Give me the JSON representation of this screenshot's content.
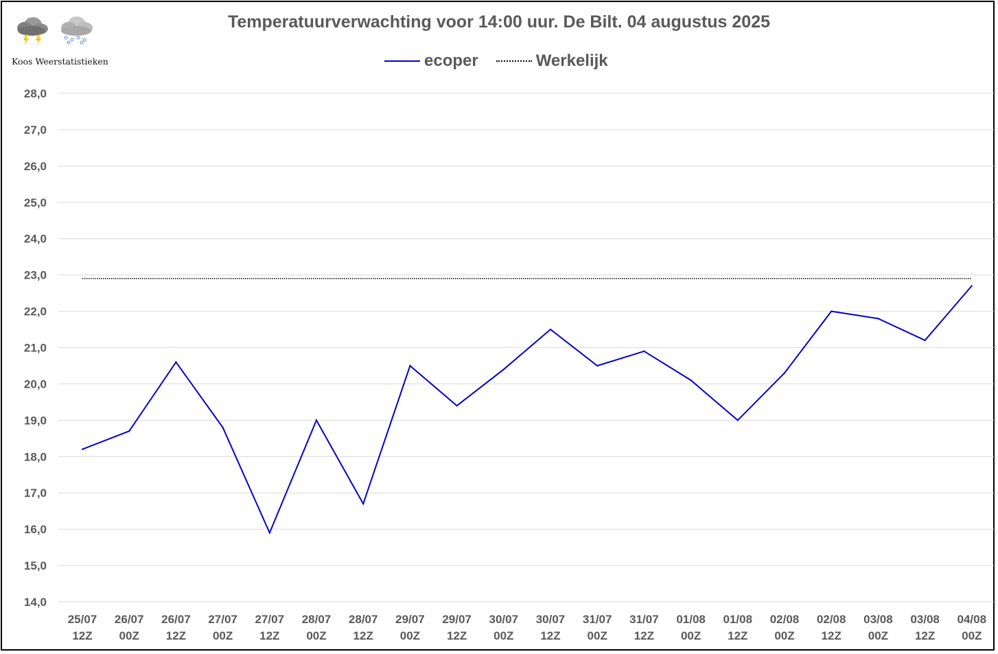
{
  "header": {
    "title": "Temperatuurverwachting voor 14:00 uur. De Bilt. 04 augustus 2025",
    "logo_text": "Koos Weerstatistieken",
    "logo_icons": [
      "thunderstorm-cloud-icon",
      "sleet-cloud-icon"
    ]
  },
  "legend": {
    "items": [
      {
        "label": "ecoper",
        "style": "solid",
        "color": "#0000CC"
      },
      {
        "label": "Werkelijk",
        "style": "dotted",
        "color": "#000000"
      }
    ],
    "placement": "top-center"
  },
  "chart_data": {
    "type": "line",
    "title": "Temperatuurverwachting voor 14:00 uur. De Bilt. 04 augustus 2025",
    "xlabel": "",
    "ylabel": "",
    "ylim": [
      14.0,
      28.0
    ],
    "ytick_step": 1.0,
    "grid": true,
    "yticks": [
      "14,0",
      "15,0",
      "16,0",
      "17,0",
      "18,0",
      "19,0",
      "20,0",
      "21,0",
      "22,0",
      "23,0",
      "24,0",
      "25,0",
      "26,0",
      "27,0",
      "28,0"
    ],
    "categories": [
      [
        "25/07",
        "12Z"
      ],
      [
        "26/07",
        "00Z"
      ],
      [
        "26/07",
        "12Z"
      ],
      [
        "27/07",
        "00Z"
      ],
      [
        "27/07",
        "12Z"
      ],
      [
        "28/07",
        "00Z"
      ],
      [
        "28/07",
        "12Z"
      ],
      [
        "29/07",
        "00Z"
      ],
      [
        "29/07",
        "12Z"
      ],
      [
        "30/07",
        "00Z"
      ],
      [
        "30/07",
        "12Z"
      ],
      [
        "31/07",
        "00Z"
      ],
      [
        "31/07",
        "12Z"
      ],
      [
        "01/08",
        "00Z"
      ],
      [
        "01/08",
        "12Z"
      ],
      [
        "02/08",
        "00Z"
      ],
      [
        "02/08",
        "12Z"
      ],
      [
        "03/08",
        "00Z"
      ],
      [
        "03/08",
        "12Z"
      ],
      [
        "04/08",
        "00Z"
      ]
    ],
    "series": [
      {
        "name": "ecoper",
        "color": "#0000CC",
        "style": "solid",
        "values": [
          18.2,
          18.7,
          20.6,
          18.8,
          15.9,
          19.0,
          16.7,
          20.5,
          19.4,
          20.4,
          21.5,
          20.5,
          20.9,
          20.1,
          19.0,
          20.3,
          22.0,
          21.8,
          21.2,
          22.7
        ]
      },
      {
        "name": "Werkelijk",
        "color": "#000000",
        "style": "dotted",
        "values": [
          22.9,
          22.9,
          22.9,
          22.9,
          22.9,
          22.9,
          22.9,
          22.9,
          22.9,
          22.9,
          22.9,
          22.9,
          22.9,
          22.9,
          22.9,
          22.9,
          22.9,
          22.9,
          22.9,
          22.9
        ]
      }
    ]
  }
}
